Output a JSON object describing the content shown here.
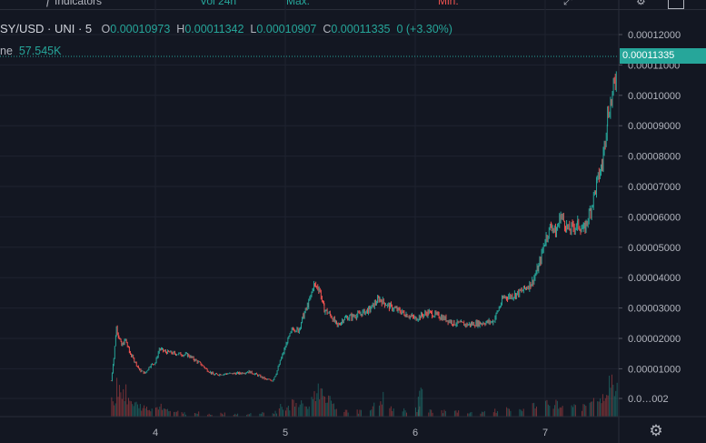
{
  "toolbar": {
    "indicators_label": "Indicators",
    "info_text": "Vol 24h",
    "max_text": "Max:",
    "min_text": "Min:",
    "colors": {
      "green": "#26a69a",
      "red": "#ef5350"
    }
  },
  "legend": {
    "symbol": "SY/USD · UNI · 5",
    "open_label": "O",
    "open_value": "0.00010973",
    "high_label": "H",
    "high_value": "0.00011342",
    "low_label": "L",
    "low_value": "0.00010907",
    "close_label": "C",
    "close_value": "0.00011335",
    "change_value": "0 (+3.30%)"
  },
  "volume_legend": {
    "label": "ne",
    "value": "57.545K"
  },
  "last_price": "0.00011335",
  "settings_icon": "gear-icon",
  "chart_data": {
    "type": "candlestick",
    "x_ticks": [
      "4",
      "5",
      "6",
      "7"
    ],
    "y_ticks": [
      "0.00012000",
      "0.00011000",
      "0.00010000",
      "0.00009000",
      "0.00008000",
      "0.00007000",
      "0.00006000",
      "0.00005000",
      "0.00004000",
      "0.00003000",
      "0.00002000",
      "0.00001000",
      "0.0…002"
    ],
    "y_tick_values": [
      0.00012,
      0.00011,
      0.0001,
      9e-05,
      8e-05,
      7e-05,
      6e-05,
      5e-05,
      4e-05,
      3e-05,
      2e-05,
      1e-05,
      0
    ],
    "ylim": [
      -2e-06,
      0.000124
    ],
    "xlim": [
      2.8,
      7.55
    ],
    "last_value": 0.00011335,
    "price_path": [
      [
        3.66,
        1.05e-05
      ],
      [
        3.68,
        1.8e-05
      ],
      [
        3.7,
        2.8e-05
      ],
      [
        3.72,
        2.5e-05
      ],
      [
        3.74,
        2.2e-05
      ],
      [
        3.77,
        2.4e-05
      ],
      [
        3.8,
        2e-05
      ],
      [
        3.84,
        1.7e-05
      ],
      [
        3.88,
        1.4e-05
      ],
      [
        3.92,
        1.3e-05
      ],
      [
        3.96,
        1.55e-05
      ],
      [
        4.0,
        1.65e-05
      ],
      [
        4.03,
        2.1e-05
      ],
      [
        4.08,
        2e-05
      ],
      [
        4.15,
        1.95e-05
      ],
      [
        4.25,
        1.9e-05
      ],
      [
        4.3,
        1.75e-05
      ],
      [
        4.35,
        1.6e-05
      ],
      [
        4.4,
        1.4e-05
      ],
      [
        4.45,
        1.25e-05
      ],
      [
        4.55,
        1.28e-05
      ],
      [
        4.65,
        1.3e-05
      ],
      [
        4.72,
        1.35e-05
      ],
      [
        4.78,
        1.25e-05
      ],
      [
        4.85,
        1.1e-05
      ],
      [
        4.9,
        1.05e-05
      ],
      [
        4.93,
        1.3e-05
      ],
      [
        4.97,
        1.8e-05
      ],
      [
        5.02,
        2.4e-05
      ],
      [
        5.06,
        2.8e-05
      ],
      [
        5.1,
        2.7e-05
      ],
      [
        5.14,
        3.2e-05
      ],
      [
        5.18,
        3.6e-05
      ],
      [
        5.22,
        4.2e-05
      ],
      [
        5.26,
        4.1e-05
      ],
      [
        5.3,
        3.4e-05
      ],
      [
        5.35,
        3.2e-05
      ],
      [
        5.4,
        2.85e-05
      ],
      [
        5.45,
        3.1e-05
      ],
      [
        5.55,
        3.2e-05
      ],
      [
        5.65,
        3.4e-05
      ],
      [
        5.72,
        3.75e-05
      ],
      [
        5.8,
        3.5e-05
      ],
      [
        5.9,
        3.3e-05
      ],
      [
        6.0,
        3.1e-05
      ],
      [
        6.1,
        3.3e-05
      ],
      [
        6.2,
        3.15e-05
      ],
      [
        6.3,
        2.95e-05
      ],
      [
        6.4,
        2.9e-05
      ],
      [
        6.5,
        2.95e-05
      ],
      [
        6.6,
        3e-05
      ],
      [
        6.68,
        3.8e-05
      ],
      [
        6.75,
        3.85e-05
      ],
      [
        6.82,
        4e-05
      ],
      [
        6.9,
        4.3e-05
      ],
      [
        6.95,
        4.8e-05
      ],
      [
        7.0,
        5.7e-05
      ],
      [
        7.05,
        6.2e-05
      ],
      [
        7.08,
        5.9e-05
      ],
      [
        7.12,
        6.5e-05
      ],
      [
        7.18,
        6e-05
      ],
      [
        7.25,
        6.2e-05
      ],
      [
        7.3,
        6e-05
      ],
      [
        7.35,
        6.7e-05
      ],
      [
        7.4,
        7.6e-05
      ],
      [
        7.44,
        8.2e-05
      ],
      [
        7.48,
        9.8e-05
      ],
      [
        7.51,
        0.000103
      ],
      [
        7.54,
        0.0001095
      ],
      [
        7.55,
        0.00011335
      ]
    ],
    "volume_bars": [
      [
        3.66,
        0.55
      ],
      [
        3.7,
        1.0
      ],
      [
        3.74,
        0.7
      ],
      [
        3.78,
        0.45
      ],
      [
        3.82,
        0.35
      ],
      [
        3.86,
        0.3
      ],
      [
        3.9,
        0.25
      ],
      [
        3.94,
        0.2
      ],
      [
        4.0,
        0.3
      ],
      [
        4.04,
        0.35
      ],
      [
        4.08,
        0.2
      ],
      [
        4.14,
        0.15
      ],
      [
        4.2,
        0.1
      ],
      [
        4.3,
        0.12
      ],
      [
        4.4,
        0.08
      ],
      [
        4.5,
        0.1
      ],
      [
        4.6,
        0.08
      ],
      [
        4.7,
        0.09
      ],
      [
        4.8,
        0.1
      ],
      [
        4.9,
        0.14
      ],
      [
        4.95,
        0.3
      ],
      [
        5.0,
        0.25
      ],
      [
        5.05,
        0.4
      ],
      [
        5.1,
        0.35
      ],
      [
        5.15,
        0.3
      ],
      [
        5.2,
        0.6
      ],
      [
        5.24,
        0.8
      ],
      [
        5.28,
        0.7
      ],
      [
        5.32,
        0.45
      ],
      [
        5.36,
        0.3
      ],
      [
        5.45,
        0.2
      ],
      [
        5.55,
        0.15
      ],
      [
        5.65,
        0.3
      ],
      [
        5.72,
        0.55
      ],
      [
        5.8,
        0.25
      ],
      [
        5.9,
        0.18
      ],
      [
        6.0,
        0.22
      ],
      [
        6.02,
        0.7
      ],
      [
        6.1,
        0.2
      ],
      [
        6.2,
        0.16
      ],
      [
        6.3,
        0.14
      ],
      [
        6.4,
        0.1
      ],
      [
        6.5,
        0.12
      ],
      [
        6.6,
        0.18
      ],
      [
        6.7,
        0.2
      ],
      [
        6.8,
        0.22
      ],
      [
        6.9,
        0.3
      ],
      [
        7.0,
        0.35
      ],
      [
        7.06,
        0.4
      ],
      [
        7.1,
        0.3
      ],
      [
        7.2,
        0.32
      ],
      [
        7.28,
        0.28
      ],
      [
        7.34,
        0.4
      ],
      [
        7.4,
        0.55
      ],
      [
        7.44,
        0.5
      ],
      [
        7.48,
        0.9
      ],
      [
        7.52,
        1.0
      ]
    ]
  }
}
